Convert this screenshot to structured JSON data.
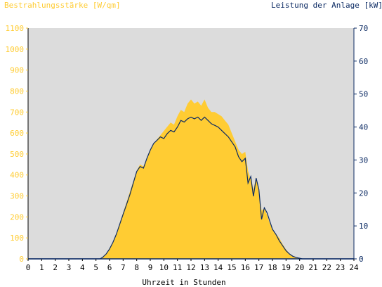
{
  "chart_data": {
    "type": "area",
    "title_left": "Bestrahlungsstärke [W/qm]",
    "title_right": "Leistung der Anlage [kW]",
    "xlabel": "Uhrzeit in Stunden",
    "xlim": [
      0,
      24
    ],
    "x_ticks": [
      "0",
      "1",
      "2",
      "3",
      "4",
      "5",
      "6",
      "7",
      "8",
      "9",
      "10",
      "11",
      "12",
      "13",
      "14",
      "15",
      "16",
      "17",
      "18",
      "19",
      "20",
      "21",
      "22",
      "23",
      "24"
    ],
    "y_left_lim": [
      0,
      1100
    ],
    "y_left_ticks": [
      "0",
      "100",
      "200",
      "300",
      "400",
      "500",
      "600",
      "700",
      "800",
      "900",
      "1000",
      "1100"
    ],
    "y_right_lim": [
      0,
      70
    ],
    "y_right_ticks": [
      "0",
      "10",
      "20",
      "30",
      "40",
      "50",
      "60",
      "70"
    ],
    "grid": false,
    "colors": {
      "irradiance": "#ffcc33",
      "power": "#0b2a63",
      "plot_background": "#dcdcdc",
      "left_axis_text": "#ffcc33",
      "right_axis_text": "#0b2a63",
      "x_axis_text": "#000000"
    },
    "series": [
      {
        "name": "Bestrahlungsstärke [W/qm]",
        "axis": "left",
        "x": [
          0,
          5.3,
          5.5,
          5.75,
          6,
          6.25,
          6.5,
          6.75,
          7,
          7.25,
          7.5,
          7.75,
          8,
          8.25,
          8.5,
          8.75,
          9,
          9.25,
          9.5,
          9.75,
          10,
          10.25,
          10.5,
          10.75,
          11,
          11.25,
          11.5,
          11.75,
          12,
          12.25,
          12.5,
          12.75,
          13,
          13.25,
          13.5,
          13.75,
          14,
          14.25,
          14.5,
          14.75,
          15,
          15.25,
          15.5,
          15.75,
          16,
          16.2,
          16.4,
          16.6,
          16.8,
          17,
          17.2,
          17.4,
          17.6,
          17.8,
          18,
          18.25,
          18.5,
          18.75,
          19,
          19.25,
          19.5,
          19.75,
          20,
          20.2,
          24
        ],
        "values": [
          0,
          0,
          10,
          25,
          50,
          80,
          120,
          170,
          220,
          270,
          320,
          370,
          420,
          450,
          440,
          480,
          520,
          550,
          570,
          590,
          610,
          630,
          650,
          640,
          680,
          710,
          700,
          740,
          760,
          740,
          750,
          730,
          760,
          720,
          700,
          700,
          690,
          680,
          660,
          640,
          600,
          560,
          520,
          500,
          510,
          420,
          380,
          330,
          390,
          320,
          230,
          240,
          210,
          170,
          140,
          120,
          100,
          70,
          45,
          25,
          12,
          5,
          2,
          0,
          0
        ]
      },
      {
        "name": "Leistung der Anlage [kW]",
        "axis": "right",
        "x": [
          0,
          5.3,
          5.5,
          5.75,
          6,
          6.25,
          6.5,
          6.75,
          7,
          7.25,
          7.5,
          7.75,
          8,
          8.25,
          8.5,
          8.75,
          9,
          9.25,
          9.5,
          9.75,
          10,
          10.25,
          10.5,
          10.75,
          11,
          11.25,
          11.5,
          11.75,
          12,
          12.25,
          12.5,
          12.75,
          13,
          13.25,
          13.5,
          13.75,
          14,
          14.25,
          14.5,
          14.75,
          15,
          15.25,
          15.5,
          15.75,
          16,
          16.2,
          16.4,
          16.6,
          16.8,
          17,
          17.2,
          17.4,
          17.6,
          17.8,
          18,
          18.25,
          18.5,
          18.75,
          19,
          19.25,
          19.5,
          19.75,
          20,
          20.2,
          24
        ],
        "values": [
          0,
          0,
          0.5,
          1.5,
          3,
          5,
          7.5,
          10.5,
          13.5,
          16.5,
          19.5,
          23,
          26.5,
          28,
          27.5,
          30.5,
          33,
          35,
          36,
          37,
          36.5,
          38,
          39,
          38.5,
          40,
          42,
          41.5,
          42.5,
          43,
          42.5,
          43,
          42,
          43,
          42,
          41,
          40.5,
          40,
          39,
          38,
          37,
          35.5,
          34,
          31,
          29.5,
          30.5,
          23,
          25,
          19,
          24.5,
          21,
          12,
          15.5,
          14,
          11.5,
          9,
          7.5,
          5.5,
          4,
          2.5,
          1.5,
          0.8,
          0.4,
          0.2,
          0,
          0
        ]
      }
    ]
  }
}
